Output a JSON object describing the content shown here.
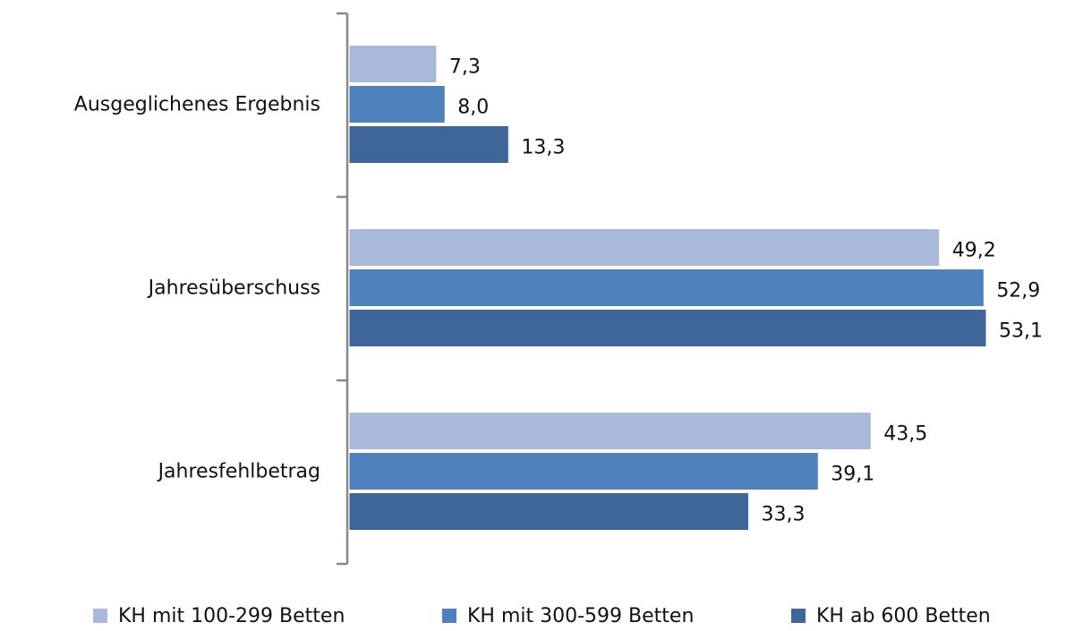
{
  "chart_data": {
    "type": "bar",
    "orientation": "horizontal",
    "categories": [
      "Ausgeglichenes Ergebnis",
      "Jahresüberschuss",
      "Jahresfehlbetrag"
    ],
    "series": [
      {
        "name": "KH mit 100-299 Betten",
        "color": "#a9b9d9",
        "values": [
          7.3,
          49.2,
          43.5
        ],
        "value_labels": [
          "7,3",
          "49,2",
          "43,5"
        ]
      },
      {
        "name": "KH mit 300-599 Betten",
        "color": "#4f81bd",
        "values": [
          8.0,
          52.9,
          39.1
        ],
        "value_labels": [
          "8,0",
          "52,9",
          "39,1"
        ]
      },
      {
        "name": "KH ab 600 Betten",
        "color": "#3e6699",
        "values": [
          13.3,
          53.1,
          33.3
        ],
        "value_labels": [
          "13,3",
          "53,1",
          "33,3"
        ]
      }
    ],
    "legend": "bottom"
  }
}
